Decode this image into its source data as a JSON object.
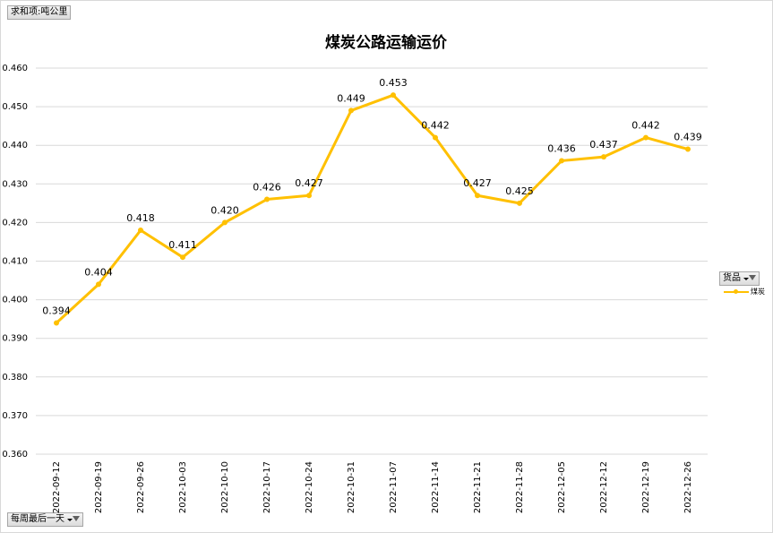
{
  "pivot": {
    "value_field": "求和项:吨公里",
    "series_field": "货品",
    "axis_field": "每周最后一天"
  },
  "chart_data": {
    "type": "line",
    "title": "煤炭公路运输运价",
    "categories": [
      "2022-09-12",
      "2022-09-19",
      "2022-09-26",
      "2022-10-03",
      "2022-10-10",
      "2022-10-17",
      "2022-10-24",
      "2022-10-31",
      "2022-11-07",
      "2022-11-14",
      "2022-11-21",
      "2022-11-28",
      "2022-12-05",
      "2022-12-12",
      "2022-12-19",
      "2022-12-26"
    ],
    "series": [
      {
        "name": "煤炭",
        "values": [
          0.394,
          0.404,
          0.418,
          0.411,
          0.42,
          0.426,
          0.427,
          0.449,
          0.453,
          0.442,
          0.427,
          0.425,
          0.436,
          0.437,
          0.442,
          0.439
        ],
        "labels": [
          "0.394",
          "0.404",
          "0.418",
          "0.411",
          "0.420",
          "0.426",
          "0.427",
          "0.449",
          "0.453",
          "0.442",
          "0.427",
          "0.425",
          "0.436",
          "0.437",
          "0.442",
          "0.439"
        ],
        "color": "#ffc000"
      }
    ],
    "ylim": [
      0.36,
      0.46
    ],
    "yticks": [
      "0.360",
      "0.370",
      "0.380",
      "0.390",
      "0.400",
      "0.410",
      "0.420",
      "0.430",
      "0.440",
      "0.450",
      "0.460"
    ],
    "grid": true,
    "legend": "right"
  }
}
